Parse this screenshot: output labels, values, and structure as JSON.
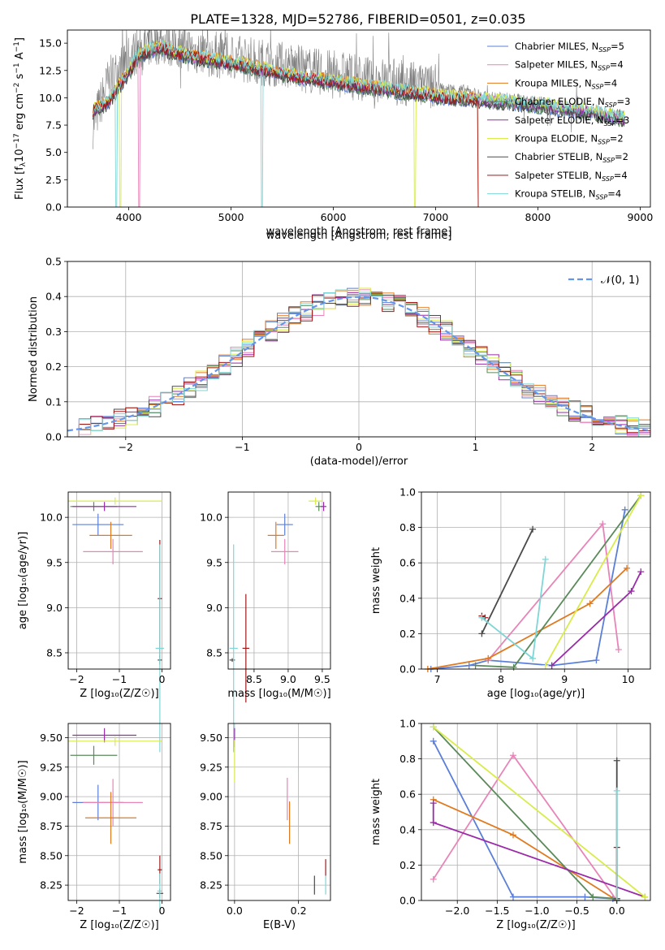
{
  "figure": {
    "title": "PLATE=1328, MJD=52786, FIBERID=0501, z=0.035"
  },
  "colors": {
    "chabrier_miles": "#5b7fd8",
    "salpeter_miles": "#e884b8",
    "kroupa_miles": "#e07a1f",
    "chabrier_elodie": "#5a8a5a",
    "salpeter_elodie": "#9a2aa8",
    "kroupa_elodie": "#d8ec4a",
    "chabrier_stelib": "#4a4a4a",
    "salpeter_stelib": "#a01818",
    "kroupa_stelib": "#7ed6d6",
    "data_gray": "#808080",
    "normal_curve": "#6495ed"
  },
  "series_names": [
    "Chabrier MILES, N_SSP=5",
    "Salpeter MILES, N_SSP=4",
    "Kroupa MILES, N_SSP=4",
    "Chabrier ELODIE, N_SSP=3",
    "Salpeter ELODIE, N_SSP=3",
    "Kroupa ELODIE, N_SSP=2",
    "Chabrier STELIB, N_SSP=2",
    "Salpeter STELIB, N_SSP=4",
    "Kroupa STELIB, N_SSP=4"
  ],
  "legend_labels": [
    [
      "Chabrier MILES, N",
      "SSP",
      "=5"
    ],
    [
      "Salpeter MILES, N",
      "SSP",
      "=4"
    ],
    [
      "Kroupa MILES, N",
      "SSP",
      "=4"
    ],
    [
      "Chabrier ELODIE, N",
      "SSP",
      "=3"
    ],
    [
      "Salpeter ELODIE, N",
      "SSP",
      "=3"
    ],
    [
      "Kroupa ELODIE, N",
      "SSP",
      "=2"
    ],
    [
      "Chabrier STELIB, N",
      "SSP",
      "=2"
    ],
    [
      "Salpeter STELIB, N",
      "SSP",
      "=4"
    ],
    [
      "Kroupa STELIB, N",
      "SSP",
      "=4"
    ]
  ],
  "chart_data": [
    {
      "id": "spectrum",
      "type": "line",
      "title": "PLATE=1328, MJD=52786, FIBERID=0501, z=0.035",
      "xlabel": "wavelength [Angstrom, rest frame]",
      "ylabel_parts": [
        "Flux [f",
        "λ",
        "10",
        "−17",
        " erg cm",
        "−2",
        " s",
        "−1",
        " A",
        "−1",
        "]"
      ],
      "xlim": [
        3400,
        9100
      ],
      "ylim": [
        0,
        16.2
      ],
      "xticks": [
        4000,
        5000,
        6000,
        7000,
        8000,
        9000
      ],
      "xtick_labels": [
        "4000",
        "5000",
        "6000",
        "7000",
        "8000",
        "9000"
      ],
      "yticks": [
        0.0,
        2.5,
        5.0,
        7.5,
        10.0,
        12.5,
        15.0
      ],
      "ytick_labels": [
        "0.0",
        "2.5",
        "5.0",
        "7.5",
        "10.0",
        "12.5",
        "15.0"
      ],
      "model_x": [
        3650,
        3800,
        3950,
        4100,
        4300,
        4500,
        4700,
        4900,
        5100,
        5300,
        5500,
        5700,
        5900,
        6100,
        6300,
        6500,
        6700,
        6900,
        7100,
        7300,
        7500,
        7700,
        7900,
        8100,
        8300,
        8500,
        8700,
        8850
      ],
      "model_y": [
        8.8,
        9.6,
        11.6,
        13.9,
        14.6,
        14.0,
        13.6,
        13.3,
        13.0,
        12.6,
        12.2,
        11.8,
        11.6,
        11.3,
        11.0,
        10.8,
        10.5,
        10.3,
        10.0,
        9.9,
        9.7,
        9.6,
        9.4,
        9.2,
        8.9,
        8.7,
        8.3,
        8.0
      ],
      "data_x": [
        3650,
        3800,
        3950,
        4100,
        4300,
        4500,
        4700,
        4900,
        5100,
        5300,
        5500,
        5700,
        5900,
        6100,
        6300,
        6500,
        6700,
        6900,
        7100,
        7300,
        7500,
        7700,
        7900,
        8100,
        8300,
        8500,
        8700,
        8850
      ],
      "data_y": [
        7.5,
        11.5,
        13.0,
        14.6,
        15.2,
        14.8,
        14.1,
        13.9,
        13.6,
        13.3,
        13.1,
        12.6,
        12.3,
        12.1,
        11.8,
        11.6,
        11.3,
        11.0,
        10.8,
        10.6,
        10.0,
        9.9,
        9.7,
        9.4,
        9.1,
        8.9,
        8.6,
        8.3
      ]
    },
    {
      "id": "residuals",
      "type": "bar",
      "xlabel": "(data-model)/error",
      "ylabel": "Normed distribution",
      "xlim": [
        -2.5,
        2.5
      ],
      "ylim": [
        0,
        0.5
      ],
      "xticks": [
        -2,
        -1,
        0,
        1,
        2
      ],
      "xtick_labels": [
        "−2",
        "−1",
        "0",
        "1",
        "2"
      ],
      "yticks": [
        0.0,
        0.1,
        0.2,
        0.3,
        0.4,
        0.5
      ],
      "ytick_labels": [
        "0.0",
        "0.1",
        "0.2",
        "0.3",
        "0.4",
        "0.5"
      ],
      "legend_entry": "𝒩(0, 1)",
      "bin_width": 0.1,
      "normal_mean": 0,
      "normal_sigma": 1
    },
    {
      "id": "age_vs_Z",
      "type": "scatter",
      "xlabel": "Z [log₁₀(Z/Z☉)]",
      "ylabel": "age  [log₁₀(age/yr)]",
      "xlim": [
        -2.2,
        0.2
      ],
      "ylim": [
        8.32,
        10.28
      ],
      "xticks": [
        -2,
        -1,
        0
      ],
      "xtick_labels": [
        "−2",
        "−1",
        "0"
      ],
      "yticks": [
        8.5,
        9.0,
        9.5,
        10.0
      ],
      "ytick_labels": [
        "8.5",
        "9.0",
        "9.5",
        "10.0"
      ],
      "points": [
        {
          "series": 0,
          "x": -1.5,
          "y": 9.92,
          "xerr": 0.6,
          "yerr": 0.12
        },
        {
          "series": 1,
          "x": -1.15,
          "y": 9.62,
          "xerr": 0.7,
          "yerr": 0.14
        },
        {
          "series": 2,
          "x": -1.2,
          "y": 9.8,
          "xerr": 0.5,
          "yerr": 0.15
        },
        {
          "series": 3,
          "x": -1.6,
          "y": 10.12,
          "xerr": 0.55,
          "yerr": 0.05
        },
        {
          "series": 4,
          "x": -1.35,
          "y": 10.12,
          "xerr": 0.75,
          "yerr": 0.05
        },
        {
          "series": 5,
          "x": -1.1,
          "y": 10.18,
          "xerr": 1.1,
          "yerr": 0.04
        },
        {
          "series": 6,
          "x": -0.05,
          "y": 8.42,
          "xerr": 0.05,
          "yerr": 0.05
        },
        {
          "series": 7,
          "x": -0.05,
          "y": 9.1,
          "xerr": 0.05,
          "yerr": 0.65
        },
        {
          "series": 8,
          "x": -0.05,
          "y": 8.55,
          "xerr": 0.1,
          "yerr": 1.15
        }
      ]
    },
    {
      "id": "age_vs_mass",
      "type": "scatter",
      "xlabel": "mass [log₁₀(M/M☉)]",
      "xlim": [
        8.12,
        9.62
      ],
      "ylim": [
        8.32,
        10.28
      ],
      "xticks": [
        8.5,
        9.0,
        9.5
      ],
      "xtick_labels": [
        "8.5",
        "9.0",
        "9.5"
      ],
      "yticks": [
        8.5,
        9.0,
        9.5,
        10.0
      ],
      "ytick_labels": [
        "8.5",
        "9.0",
        "9.5",
        "10.0"
      ],
      "points": [
        {
          "series": 0,
          "x": 8.95,
          "y": 9.92,
          "xerr": 0.12,
          "yerr": 0.12
        },
        {
          "series": 1,
          "x": 8.95,
          "y": 9.62,
          "xerr": 0.2,
          "yerr": 0.14
        },
        {
          "series": 2,
          "x": 8.82,
          "y": 9.8,
          "xerr": 0.12,
          "yerr": 0.15
        },
        {
          "series": 3,
          "x": 9.45,
          "y": 10.12,
          "xerr": 0.05,
          "yerr": 0.05
        },
        {
          "series": 4,
          "x": 9.52,
          "y": 10.12,
          "xerr": 0.04,
          "yerr": 0.05
        },
        {
          "series": 5,
          "x": 9.4,
          "y": 10.18,
          "xerr": 0.1,
          "yerr": 0.04
        },
        {
          "series": 6,
          "x": 8.18,
          "y": 8.42,
          "xerr": 0.04,
          "yerr": 0.02
        },
        {
          "series": 7,
          "x": 8.38,
          "y": 8.55,
          "xerr": 0.05,
          "yerr": 0.6
        },
        {
          "series": 8,
          "x": 8.2,
          "y": 8.55,
          "xerr": 0.06,
          "yerr": 1.15
        }
      ]
    },
    {
      "id": "mass_weight_vs_age",
      "type": "line",
      "xlabel": "age  [log₁₀(age/yr)]",
      "ylabel": "mass weight",
      "xlim": [
        6.75,
        10.35
      ],
      "ylim": [
        0,
        1.0
      ],
      "xticks": [
        7,
        8,
        9,
        10
      ],
      "xtick_labels": [
        "7",
        "8",
        "9",
        "10"
      ],
      "yticks": [
        0.0,
        0.2,
        0.4,
        0.6,
        0.8,
        1.0
      ],
      "ytick_labels": [
        "0.0",
        "0.2",
        "0.4",
        "0.6",
        "0.8",
        "1.0"
      ],
      "series": [
        {
          "x": [
            6.9,
            7.5,
            7.8,
            8.8,
            9.5,
            9.95
          ],
          "y": [
            0.0,
            0.02,
            0.05,
            0.02,
            0.05,
            0.9
          ]
        },
        {
          "x": [
            7.8,
            9.6,
            9.85
          ],
          "y": [
            0.05,
            0.82,
            0.11
          ]
        },
        {
          "x": [
            6.85,
            7.8,
            9.4,
            9.98
          ],
          "y": [
            0.0,
            0.06,
            0.37,
            0.57
          ]
        },
        {
          "x": [
            7.6,
            8.2,
            10.2
          ],
          "y": [
            0.02,
            0.01,
            0.98
          ]
        },
        {
          "x": [
            8.8,
            10.05,
            10.2
          ],
          "y": [
            0.02,
            0.44,
            0.55
          ]
        },
        {
          "x": [
            8.7,
            10.2
          ],
          "y": [
            0.02,
            0.98
          ]
        },
        {
          "x": [
            7.7,
            8.5
          ],
          "y": [
            0.2,
            0.79
          ]
        },
        {
          "x": [
            7.7,
            7.75
          ],
          "y": [
            0.3,
            0.29
          ]
        },
        {
          "x": [
            7.7,
            8.5,
            8.7
          ],
          "y": [
            0.29,
            0.06,
            0.62
          ]
        }
      ]
    },
    {
      "id": "mass_vs_Z",
      "type": "scatter",
      "xlabel": "Z [log₁₀(Z/Z☉)]",
      "ylabel": "mass [log₁₀(M/M☉)]",
      "xlim": [
        -2.2,
        0.2
      ],
      "ylim": [
        8.12,
        9.62
      ],
      "xticks": [
        -2,
        -1,
        0
      ],
      "xtick_labels": [
        "−2",
        "−1",
        "0"
      ],
      "yticks": [
        8.25,
        8.5,
        8.75,
        9.0,
        9.25,
        9.5
      ],
      "ytick_labels": [
        "8.25",
        "8.50",
        "8.75",
        "9.00",
        "9.25",
        "9.50"
      ],
      "points": [
        {
          "series": 0,
          "x": -1.5,
          "y": 8.95,
          "xerr": 0.6,
          "yerr": 0.15
        },
        {
          "series": 1,
          "x": -1.15,
          "y": 8.95,
          "xerr": 0.7,
          "yerr": 0.2
        },
        {
          "series": 2,
          "x": -1.2,
          "y": 8.82,
          "xerr": 0.6,
          "yerr": 0.22
        },
        {
          "series": 3,
          "x": -1.6,
          "y": 9.35,
          "xerr": 0.55,
          "yerr": 0.08
        },
        {
          "series": 4,
          "x": -1.35,
          "y": 9.52,
          "xerr": 0.75,
          "yerr": 0.06
        },
        {
          "series": 5,
          "x": -1.1,
          "y": 9.47,
          "xerr": 1.1,
          "yerr": 0.04
        },
        {
          "series": 6,
          "x": -0.05,
          "y": 8.18,
          "xerr": 0.08,
          "yerr": 0.04
        },
        {
          "series": 7,
          "x": -0.05,
          "y": 8.38,
          "xerr": 0.05,
          "yerr": 0.12
        },
        {
          "series": 8,
          "x": -0.05,
          "y": 8.2,
          "xerr": 0.06,
          "yerr": 0.15
        }
      ]
    },
    {
      "id": "mass_vs_ebv",
      "type": "scatter",
      "xlabel": "E(B-V)",
      "xlim": [
        -0.02,
        0.3
      ],
      "ylim": [
        8.12,
        9.62
      ],
      "xticks": [
        0.0,
        0.2
      ],
      "xtick_labels": [
        "0.0",
        "0.2"
      ],
      "yticks": [
        8.25,
        8.5,
        8.75,
        9.0,
        9.25,
        9.5
      ],
      "ytick_labels": [
        "8.25",
        "8.50",
        "8.75",
        "9.00",
        "9.25",
        "9.50"
      ],
      "points": [
        {
          "series": 4,
          "x": 0.0,
          "y": 9.5,
          "xerr": 0,
          "yerr": 0.08
        },
        {
          "series": 5,
          "x": 0.0,
          "y": 9.3,
          "xerr": 0,
          "yerr": 0.18
        },
        {
          "series": 1,
          "x": 0.165,
          "y": 8.98,
          "xerr": 0,
          "yerr": 0.18
        },
        {
          "series": 2,
          "x": 0.172,
          "y": 8.78,
          "xerr": 0,
          "yerr": 0.18
        },
        {
          "series": 6,
          "x": 0.25,
          "y": 8.25,
          "xerr": 0,
          "yerr": 0.08
        },
        {
          "series": 7,
          "x": 0.285,
          "y": 8.4,
          "xerr": 0,
          "yerr": 0.07
        },
        {
          "series": 8,
          "x": 0.285,
          "y": 8.25,
          "xerr": 0,
          "yerr": 0.08
        }
      ]
    },
    {
      "id": "mass_weight_vs_Z",
      "type": "line",
      "xlabel": "Z [log₁₀(Z/Z☉)]",
      "ylabel": "mass weight",
      "xlim": [
        -2.45,
        0.42
      ],
      "ylim": [
        0,
        1.0
      ],
      "xticks": [
        -2.0,
        -1.5,
        -1.0,
        -0.5,
        0.0
      ],
      "xtick_labels": [
        "−2.0",
        "−1.5",
        "−1.0",
        "−0.5",
        "0.0"
      ],
      "yticks": [
        0.0,
        0.2,
        0.4,
        0.6,
        0.8,
        1.0
      ],
      "ytick_labels": [
        "0.0",
        "0.2",
        "0.4",
        "0.6",
        "0.8",
        "1.0"
      ],
      "series": [
        {
          "x": [
            -2.3,
            -1.3,
            -0.4,
            -0.05,
            0.0
          ],
          "y": [
            0.9,
            0.02,
            0.02,
            0.01,
            0.0
          ]
        },
        {
          "x": [
            -2.3,
            -1.3,
            0.0
          ],
          "y": [
            0.12,
            0.82,
            0.0
          ]
        },
        {
          "x": [
            -2.3,
            -1.3,
            0.0
          ],
          "y": [
            0.57,
            0.37,
            0.0
          ]
        },
        {
          "x": [
            -2.3,
            -0.3,
            0.0
          ],
          "y": [
            0.98,
            0.02,
            0.01
          ]
        },
        {
          "x": [
            -2.3,
            -2.3,
            0.35
          ],
          "y": [
            0.55,
            0.44,
            0.02
          ]
        },
        {
          "x": [
            -2.3,
            0.35
          ],
          "y": [
            0.98,
            0.02
          ]
        },
        {
          "x": [
            0.0,
            0.0
          ],
          "y": [
            0.79,
            0.01
          ]
        },
        {
          "x": [
            0.0,
            0.0
          ],
          "y": [
            0.3,
            0.0
          ]
        },
        {
          "x": [
            0.0,
            0.0
          ],
          "y": [
            0.62,
            0.0
          ]
        }
      ]
    }
  ]
}
